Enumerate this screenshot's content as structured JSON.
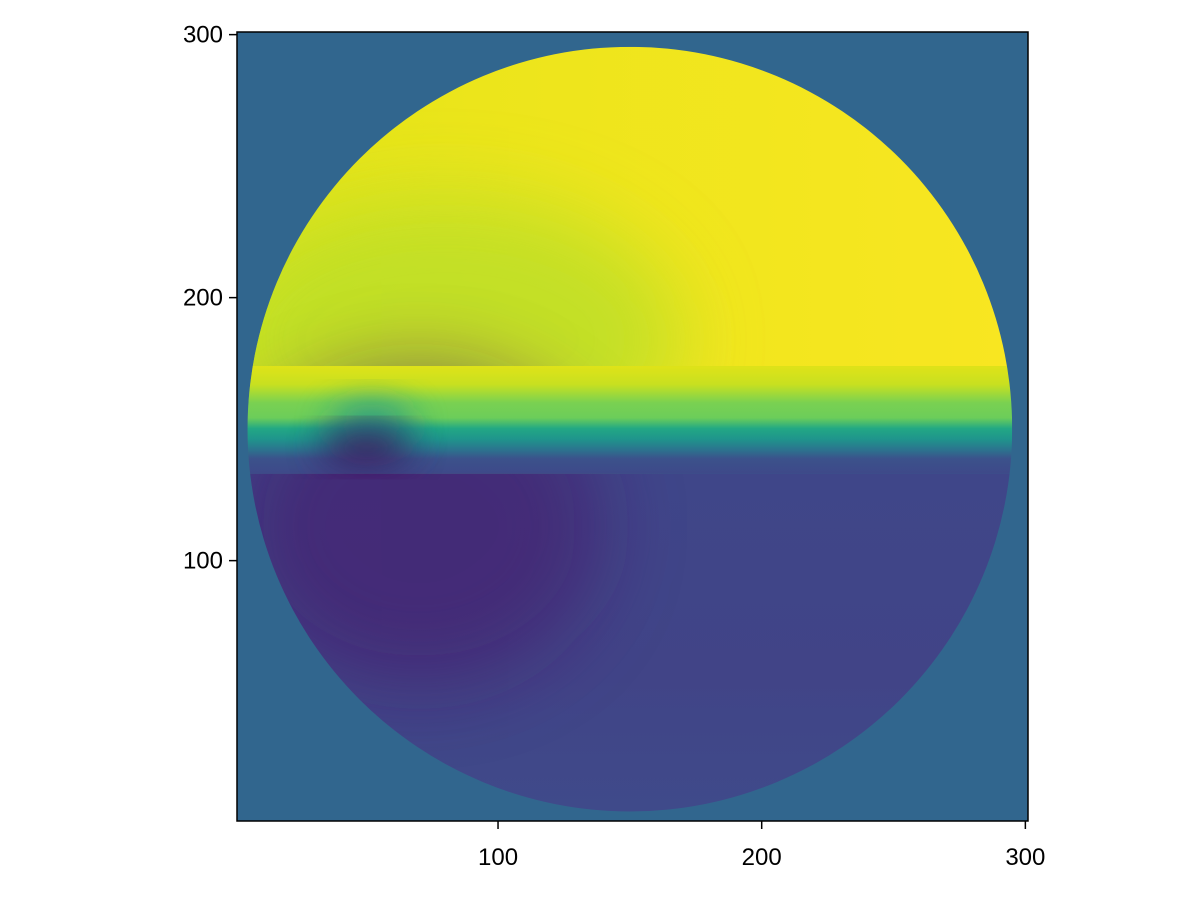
{
  "chart_data": {
    "type": "heatmap",
    "title": "",
    "xlabel": "",
    "ylabel": "",
    "xlim": [
      1,
      301
    ],
    "ylim": [
      1,
      301
    ],
    "xticks": [
      100,
      200,
      300
    ],
    "yticks": [
      100,
      200,
      300
    ],
    "xtick_labels": [
      "100",
      "200",
      "300"
    ],
    "ytick_labels": [
      "100",
      "200",
      "300"
    ],
    "grid": false,
    "colormap": "viridis",
    "background_value_color": "#31668e",
    "disk": {
      "center": [
        150,
        150
      ],
      "radius": 145
    },
    "band": {
      "y_range": [
        133,
        174
      ],
      "center_y": 155
    },
    "hotspot": {
      "x": 50,
      "y": 143
    },
    "colors": {
      "outside": "#31668e",
      "upper_region": "#f5e41c",
      "lower_region": "#404386",
      "hotspot_dark": "#440154",
      "band_light": "#7ad151",
      "band_mid": "#20a486",
      "band_dark": "#2c5e8d"
    }
  }
}
